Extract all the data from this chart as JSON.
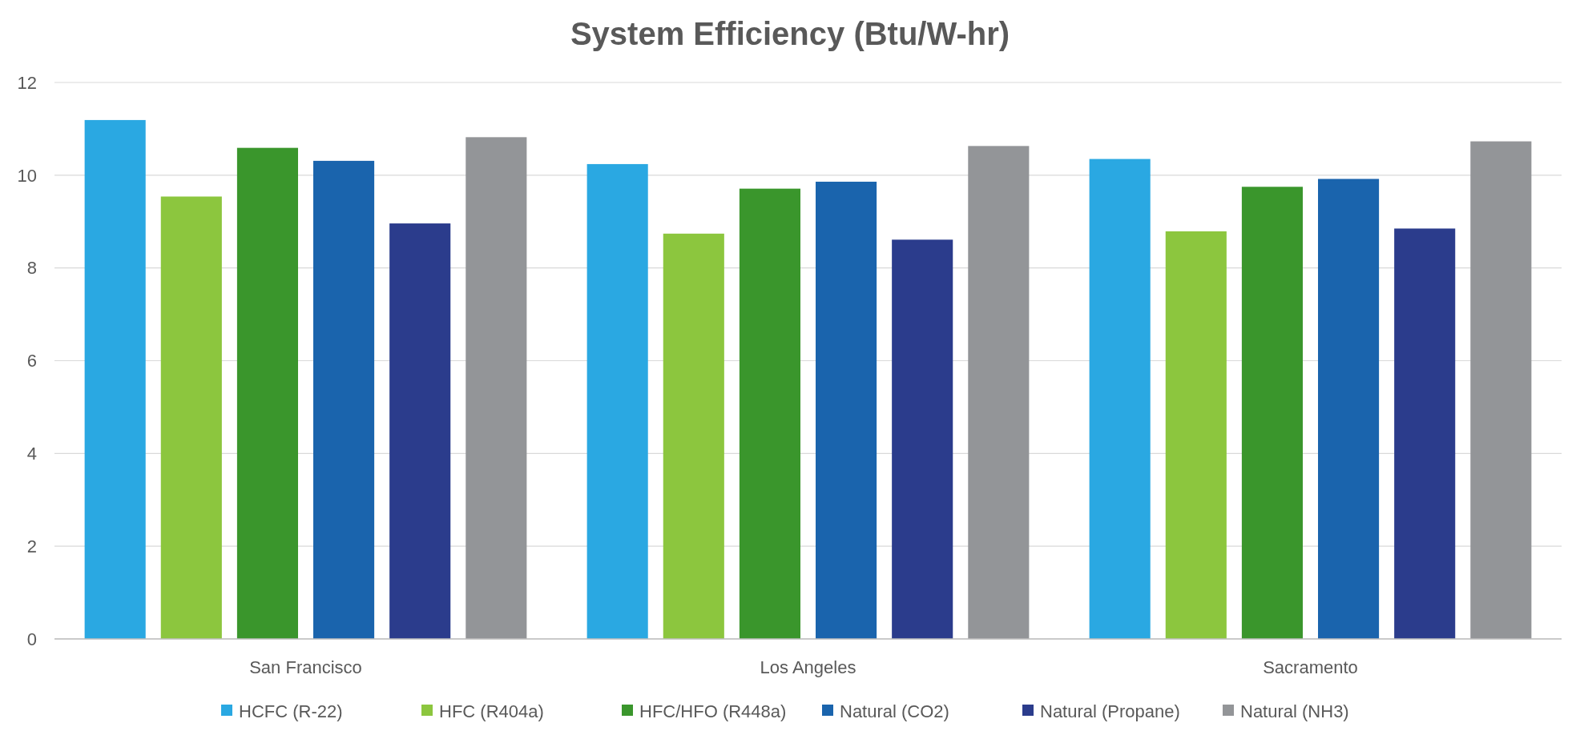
{
  "chart_data": {
    "type": "bar",
    "title": "System Efficiency (Btu/W-hr)",
    "categories": [
      "San Francisco",
      "Los Angeles",
      "Sacramento"
    ],
    "series": [
      {
        "name": "HCFC (R-22)",
        "color": "#2aa8e2",
        "values": [
          11.19,
          10.24,
          10.35
        ]
      },
      {
        "name": "HFC (R404a)",
        "color": "#8cc63e",
        "values": [
          9.54,
          8.74,
          8.79
        ]
      },
      {
        "name": "HFC/HFO (R448a)",
        "color": "#3a962c",
        "values": [
          10.59,
          9.71,
          9.75
        ]
      },
      {
        "name": "Natural (CO2)",
        "color": "#1a64ad",
        "values": [
          10.31,
          9.86,
          9.92
        ]
      },
      {
        "name": "Natural (Propane)",
        "color": "#2b3c8c",
        "values": [
          8.96,
          8.61,
          8.85
        ]
      },
      {
        "name": "Natural (NH3)",
        "color": "#939598",
        "values": [
          10.82,
          10.63,
          10.73
        ]
      }
    ],
    "ylim": [
      0,
      12
    ],
    "yticks": [
      0,
      2,
      4,
      6,
      8,
      10,
      12
    ],
    "grid": "y",
    "legend": "bottom"
  }
}
